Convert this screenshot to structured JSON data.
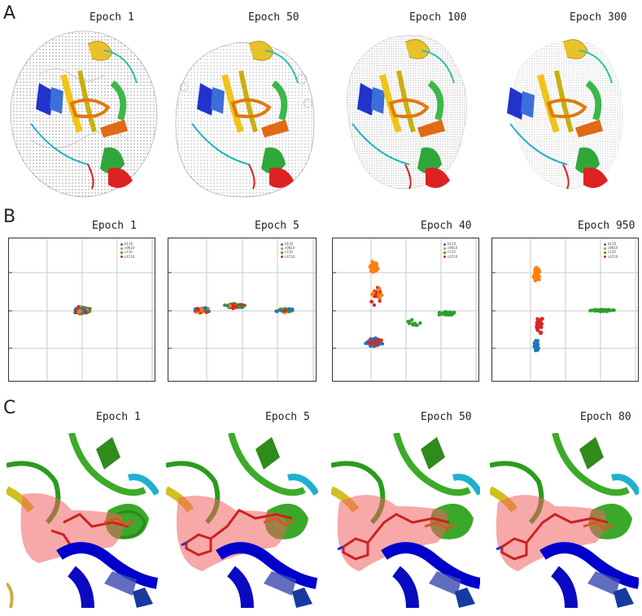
{
  "panels": {
    "A": {
      "letter": "A",
      "epochs": [
        "Epoch 1",
        "Epoch 50",
        "Epoch 100",
        "Epoch 300"
      ]
    },
    "B": {
      "letter": "B",
      "epochs": [
        "Epoch 1",
        "Epoch 5",
        "Epoch 40",
        "Epoch 950"
      ]
    },
    "C": {
      "letter": "C",
      "epochs": [
        "Epoch 1",
        "Epoch 5",
        "Epoch 50",
        "Epoch 80"
      ]
    }
  },
  "colors": {
    "blue": "#1f77b4",
    "orange": "#ff7f0e",
    "green": "#2ca02c",
    "red": "#d62728"
  },
  "chart_data": [
    {
      "type": "scatter",
      "title": "Epoch 1",
      "legend_position": "top-right",
      "grid": true,
      "legend": [
        "b110",
        "c9610",
        "c110",
        "c4710"
      ]
    },
    {
      "type": "scatter",
      "title": "Epoch 5",
      "legend_position": "top-right",
      "grid": true,
      "legend": [
        "b110",
        "c9610",
        "c110",
        "c4710"
      ]
    },
    {
      "type": "scatter",
      "title": "Epoch 40",
      "legend_position": "top-right",
      "grid": true,
      "legend": [
        "b110",
        "c9610",
        "c110",
        "c4710"
      ]
    },
    {
      "type": "scatter",
      "title": "Epoch 950",
      "legend_position": "top-right",
      "grid": true,
      "legend": [
        "b110",
        "c9610",
        "c110",
        "c4710"
      ]
    }
  ]
}
